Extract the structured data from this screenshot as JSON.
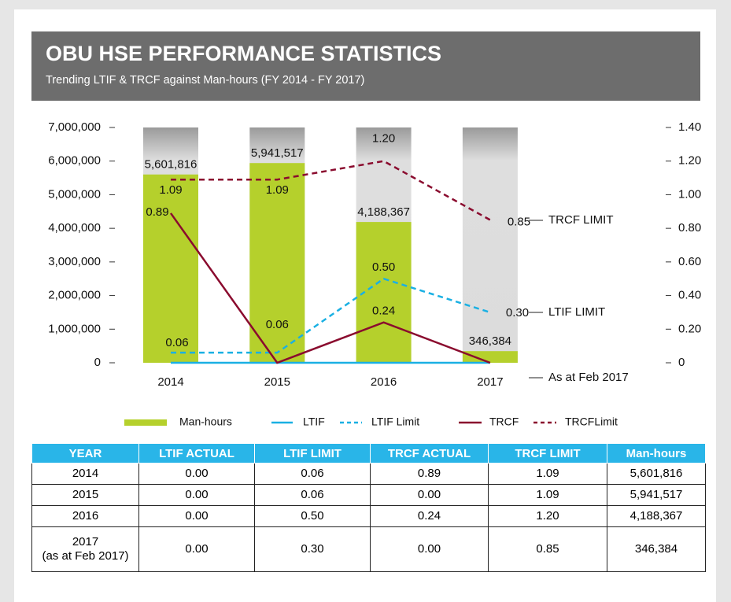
{
  "chart_data": {
    "type": "bar",
    "title": "OBU HSE PERFORMANCE STATISTICS",
    "subtitle": "Trending LTIF & TRCF against Man-hours (FY 2014 - FY 2017)",
    "categories": [
      "2014",
      "2015",
      "2016",
      "2017"
    ],
    "series": [
      {
        "name": "Man-hours",
        "type": "bar",
        "color": "#b5d02c",
        "values": [
          5601816,
          5941517,
          4188367,
          346384
        ],
        "value_labels": [
          "5,601,816",
          "5,941,517",
          "4,188,367",
          "346,384"
        ]
      },
      {
        "name": "LTIF",
        "type": "line",
        "axis": "y2",
        "color": "#1ab0e3",
        "dashed": false,
        "values": [
          0,
          0,
          0,
          0
        ]
      },
      {
        "name": "LTIF Limit",
        "type": "line",
        "axis": "y2",
        "color": "#1ab0e3",
        "dashed": true,
        "values": [
          0.06,
          0.06,
          0.5,
          0.3
        ],
        "value_labels": [
          "0.06",
          "0.06",
          "0.50",
          "0.30"
        ]
      },
      {
        "name": "TRCF",
        "type": "line",
        "axis": "y2",
        "color": "#8a0b2e",
        "dashed": false,
        "values": [
          0.89,
          0,
          0.24,
          0
        ],
        "value_labels": [
          "0.89",
          null,
          "0.24",
          null
        ]
      },
      {
        "name": "TRCFLimit",
        "type": "line",
        "axis": "y2",
        "color": "#8a0b2e",
        "dashed": true,
        "values": [
          1.09,
          1.09,
          1.2,
          0.85
        ],
        "value_labels": [
          "1.09",
          "1.09",
          "1.20",
          "0.85"
        ]
      }
    ],
    "annotations": [
      "TRCF LIMIT",
      "LTIF LIMIT",
      "As at Feb 2017"
    ],
    "ylim": [
      0,
      7000000
    ],
    "yticks": [
      0,
      {
        "value": 1000000,
        "label": "1,000,000"
      },
      {
        "value": 2000000,
        "label": "2,000,000"
      },
      {
        "value": 3000000,
        "label": "3,000,000"
      },
      {
        "value": 4000000,
        "label": "4,000,000"
      },
      {
        "value": 5000000,
        "label": "5,000,000"
      },
      {
        "value": 6000000,
        "label": "6,000,000"
      },
      {
        "value": 7000000,
        "label": "7,000,000"
      }
    ],
    "y2lim": [
      0,
      1.4
    ],
    "y2ticks": [
      0,
      {
        "value": 0.2,
        "label": "0.20"
      },
      {
        "value": 0.4,
        "label": "0.40"
      },
      {
        "value": 0.6,
        "label": "0.60"
      },
      {
        "value": 0.8,
        "label": "0.80"
      },
      {
        "value": 1.0,
        "label": "1.00"
      },
      {
        "value": 1.2,
        "label": "1.20"
      },
      {
        "value": 1.4,
        "label": "1.40"
      }
    ],
    "legend": "bottom"
  },
  "table": {
    "columns": [
      "YEAR",
      "LTIF ACTUAL",
      "LTIF LIMIT",
      "TRCF ACTUAL",
      "TRCF LIMIT",
      "Man-hours"
    ],
    "rows": [
      [
        "2014",
        "0.00",
        "0.06",
        "0.89",
        "1.09",
        "5,601,816"
      ],
      [
        "2015",
        "0.00",
        "0.06",
        "0.00",
        "1.09",
        "5,941,517"
      ],
      [
        "2016",
        "0.00",
        "0.50",
        "0.24",
        "1.20",
        "4,188,367"
      ],
      [
        "2017\n(as at Feb 2017)",
        "0.00",
        "0.30",
        "0.00",
        "0.85",
        "346,384"
      ]
    ]
  }
}
